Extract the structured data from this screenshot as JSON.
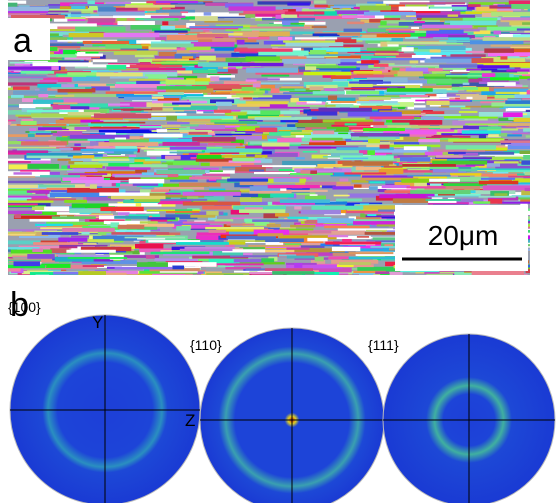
{
  "panel_a": {
    "label": "a",
    "scale_bar": "20μm"
  },
  "panel_b": {
    "label": "b",
    "axis_y": "Y",
    "axis_z": "Z",
    "pole_figures": [
      "{100}",
      "{110}",
      "{111}"
    ]
  }
}
